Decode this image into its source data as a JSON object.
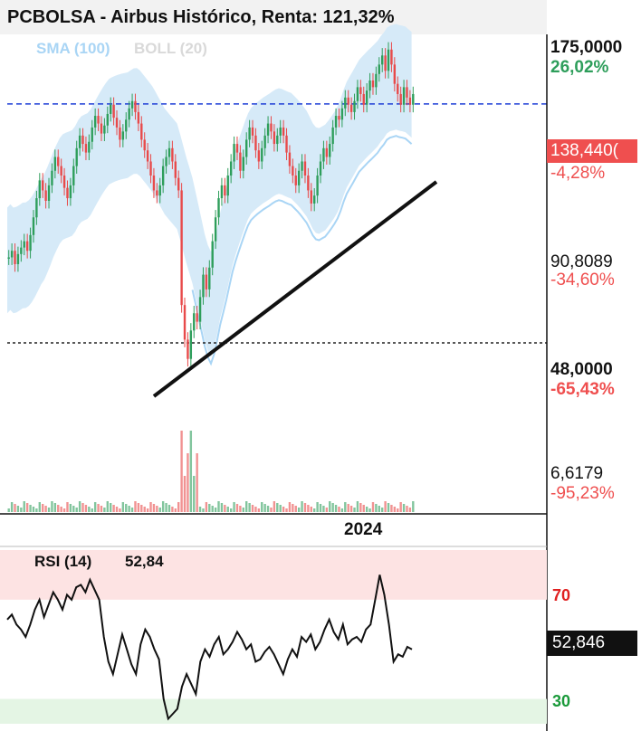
{
  "title": "PCBOLSA - Airbus Histórico, Renta: 121,32%",
  "indicators": {
    "sma": "SMA (100)",
    "boll": "BOLL (20)"
  },
  "axis": {
    "t175": "175,0000",
    "p175": "26,02%",
    "current": "138,440(",
    "pcur": "-4,28%",
    "t90": "90,8089",
    "p90": "-34,60%",
    "t48": "48,0000",
    "p48": "-65,43%",
    "t6": "6,6179",
    "p6": "-95,23%"
  },
  "year_label": "2024",
  "rsi": {
    "label": "RSI (14)",
    "value": "52,84",
    "box": "52,846",
    "l70": "70",
    "l30": "30"
  },
  "colors": {
    "up": "#2e9e5b",
    "down": "#e84a4a",
    "band": "#d6eaf8",
    "sma": "#a9d5f5",
    "last_price": "#ef4f4f",
    "ob": "#fde3e3",
    "os": "#e4f5e4"
  },
  "chart_data": {
    "type": "candlestick",
    "title": "PCBOLSA - Airbus Histórico, Renta: 121,32%",
    "last_price": 138.44,
    "price_ticks": [
      175.0,
      90.8089,
      48.0,
      6.6179
    ],
    "pct_ticks": [
      "26,02%",
      "-34,60%",
      "-65,43%",
      "-95,23%"
    ],
    "support_levels": [
      138.44,
      55.0
    ],
    "close": [
      75,
      77,
      73,
      76,
      78,
      80,
      77,
      82,
      88,
      95,
      102,
      98,
      94,
      100,
      106,
      112,
      108,
      104,
      99,
      95,
      100,
      108,
      116,
      122,
      118,
      114,
      119,
      126,
      132,
      128,
      123,
      127,
      133,
      138,
      131,
      126,
      120,
      124,
      130,
      136,
      140,
      134,
      128,
      120,
      115,
      110,
      104,
      98,
      96,
      100,
      108,
      112,
      116,
      110,
      103,
      98,
      62,
      54,
      50,
      56,
      60,
      58,
      64,
      70,
      66,
      72,
      80,
      88,
      95,
      100,
      96,
      104,
      110,
      118,
      114,
      106,
      112,
      120,
      126,
      122,
      115,
      110,
      116,
      122,
      128,
      124,
      118,
      122,
      126,
      122,
      114,
      108,
      104,
      100,
      106,
      110,
      104,
      98,
      93,
      96,
      104,
      110,
      116,
      112,
      118,
      126,
      132,
      130,
      136,
      142,
      138,
      134,
      140,
      148,
      144,
      138,
      146,
      152,
      148,
      156,
      162,
      168,
      158,
      172,
      162,
      150,
      144,
      138,
      148,
      142,
      138,
      144
    ],
    "rsi": [
      62,
      64,
      60,
      58,
      55,
      60,
      66,
      70,
      63,
      68,
      73,
      70,
      66,
      72,
      70,
      75,
      76,
      73,
      78,
      74,
      70,
      55,
      45,
      40,
      48,
      56,
      50,
      44,
      40,
      52,
      58,
      55,
      50,
      46,
      30,
      22,
      24,
      26,
      35,
      40,
      36,
      32,
      45,
      50,
      47,
      52,
      55,
      48,
      50,
      53,
      57,
      54,
      50,
      52,
      45,
      46,
      49,
      51,
      48,
      44,
      40,
      46,
      50,
      47,
      55,
      53,
      56,
      50,
      53,
      58,
      62,
      57,
      54,
      60,
      52,
      54,
      55,
      53,
      58,
      60,
      70,
      80,
      72,
      60,
      45,
      48,
      47,
      51,
      50
    ]
  }
}
